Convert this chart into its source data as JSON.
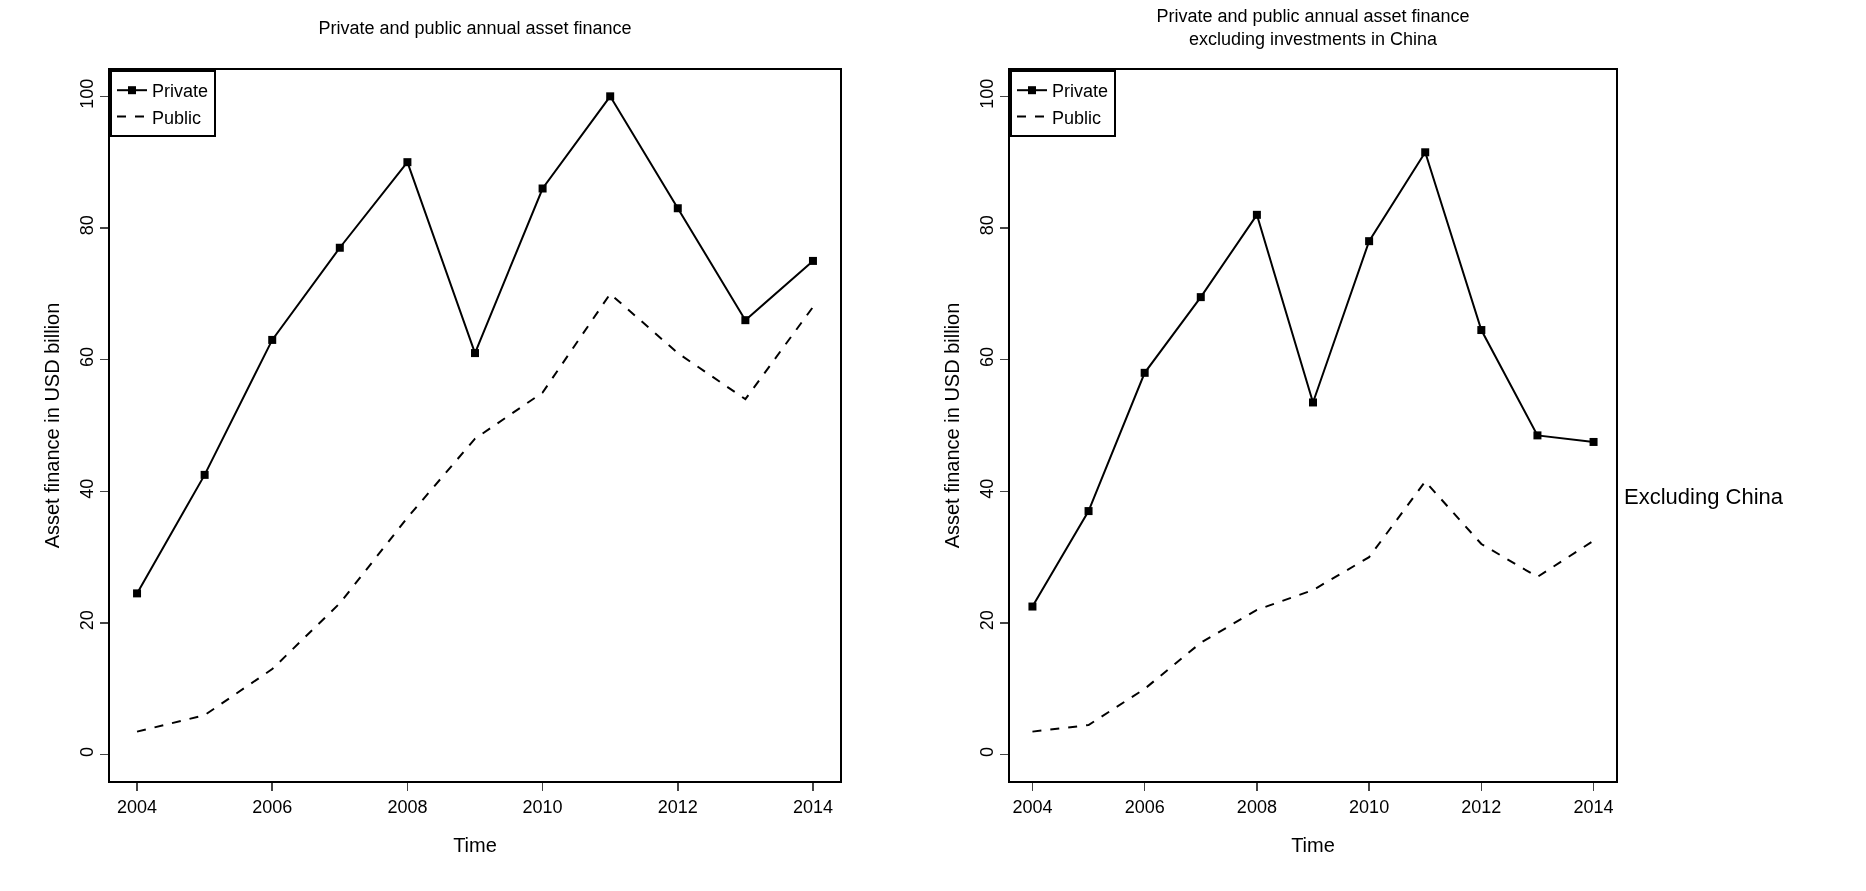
{
  "chart_data": [
    {
      "type": "line",
      "title": "Private and public annual asset finance",
      "xlabel": "Time",
      "ylabel": "Asset finance in USD billion",
      "x": [
        2004,
        2005,
        2006,
        2007,
        2008,
        2009,
        2010,
        2011,
        2012,
        2013,
        2014
      ],
      "series": [
        {
          "name": "Private",
          "color": "#000000",
          "marker": "square",
          "line_style": "solid",
          "values": [
            24.5,
            42.5,
            63,
            77,
            90,
            61,
            86,
            100,
            83,
            66,
            75
          ]
        },
        {
          "name": "Public",
          "color": "#000000",
          "marker": "none",
          "line_style": "dashed",
          "values": [
            3.5,
            6,
            13,
            23,
            36,
            48,
            55,
            70,
            61,
            54,
            68
          ]
        }
      ],
      "xlim": [
        2003.6,
        2014.4
      ],
      "ylim": [
        -4,
        104
      ],
      "xticks": [
        2004,
        2006,
        2008,
        2010,
        2012,
        2014
      ],
      "yticks": [
        0,
        20,
        40,
        60,
        80,
        100
      ],
      "grid": false,
      "legend": "top left"
    },
    {
      "type": "line",
      "title": "Private and public annual asset finance\nexcluding investments in China",
      "xlabel": "Time",
      "ylabel": "Asset finance in USD billion",
      "x": [
        2004,
        2005,
        2006,
        2007,
        2008,
        2009,
        2010,
        2011,
        2012,
        2013,
        2014
      ],
      "series": [
        {
          "name": "Private",
          "color": "#000000",
          "marker": "square",
          "line_style": "solid",
          "values": [
            22.5,
            37,
            58,
            69.5,
            82,
            53.5,
            78,
            91.5,
            64.5,
            48.5,
            47.5
          ]
        },
        {
          "name": "Public",
          "color": "#000000",
          "marker": "none",
          "line_style": "dashed",
          "values": [
            3.5,
            4.5,
            10,
            17,
            22,
            25,
            30,
            41.5,
            32,
            27,
            32.5
          ]
        }
      ],
      "xlim": [
        2003.6,
        2014.4
      ],
      "ylim": [
        -4,
        104
      ],
      "xticks": [
        2004,
        2006,
        2008,
        2010,
        2012,
        2014
      ],
      "yticks": [
        0,
        20,
        40,
        60,
        80,
        100
      ],
      "grid": false,
      "legend": "top left",
      "annotations": [
        "Excluding China"
      ]
    }
  ]
}
